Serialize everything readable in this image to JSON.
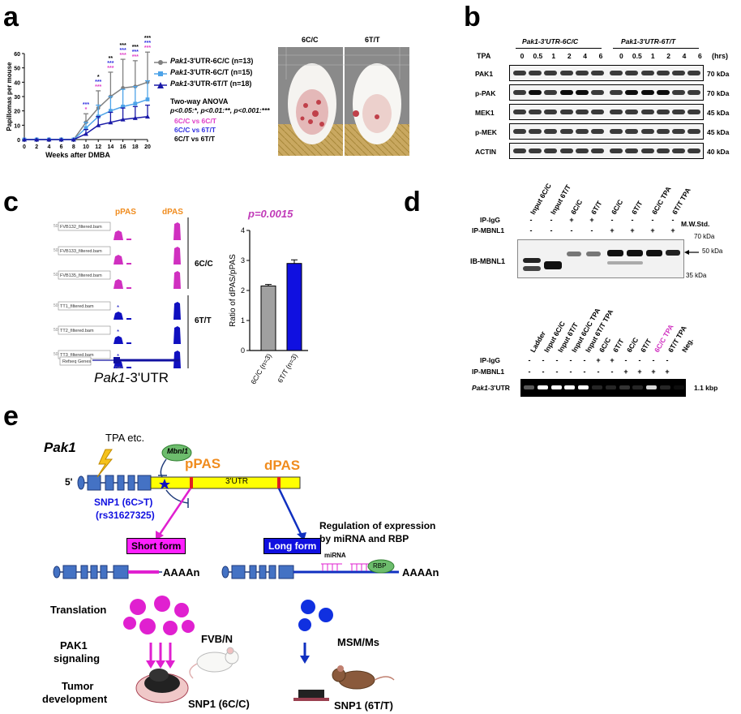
{
  "panel_labels": {
    "a": "a",
    "b": "b",
    "c": "c",
    "d": "d",
    "e": "e"
  },
  "panel_a": {
    "chart_data": {
      "type": "line",
      "ylabel": "Papillomas per mouse",
      "xlabel": "Weeks after DMBA",
      "x": [
        0,
        2,
        4,
        6,
        8,
        10,
        12,
        14,
        16,
        18,
        20
      ],
      "xlim": [
        0,
        20
      ],
      "ylim": [
        0,
        60
      ],
      "yticks": [
        0,
        10,
        20,
        30,
        40,
        50,
        60
      ],
      "series": [
        {
          "name": "Pak1-3'UTR-6C/C (n=13)",
          "genotype": "6C/C",
          "color": "#808080",
          "values": [
            0,
            0,
            0,
            0,
            0,
            12,
            22,
            30,
            36,
            37,
            40
          ],
          "err": [
            0,
            0,
            0,
            0,
            0,
            6,
            12,
            17,
            20,
            18,
            21
          ]
        },
        {
          "name": "Pak1-3'UTR-6C/T (n=15)",
          "genotype": "6C/T",
          "color": "#4da3e8",
          "values": [
            0,
            0,
            0,
            0,
            0,
            8,
            16,
            20,
            23,
            25,
            28
          ],
          "err": [
            0,
            0,
            0,
            0,
            0,
            4,
            8,
            10,
            12,
            12,
            13
          ]
        },
        {
          "name": "Pak1-3'UTR-6T/T (n=18)",
          "genotype": "6T/T",
          "color": "#1a1aa8",
          "values": [
            0,
            0,
            0,
            0,
            0,
            4,
            10,
            12,
            14,
            15,
            16
          ],
          "err": [
            0,
            0,
            0,
            0,
            0,
            3,
            6,
            7,
            8,
            8,
            8
          ]
        }
      ],
      "significance": {
        "x": [
          10,
          12,
          14,
          16,
          18,
          20
        ],
        "black": [
          "",
          "*",
          "**",
          "***",
          "***",
          "***"
        ],
        "blue": [
          "***",
          "***",
          "***",
          "***",
          "***",
          "***"
        ],
        "magenta": [
          "*",
          "***",
          "***",
          "***",
          "***",
          "***"
        ]
      }
    },
    "legend_prefix": "Pak1",
    "legend_suffixes": [
      "-3'UTR-6C/C (n=13)",
      "-3'UTR-6C/T (n=15)",
      "-3'UTR-6T/T (n=18)"
    ],
    "anova_title": "Two-way ANOVA",
    "anova_p": "p<0.05:*, p<0.01:**, p<0.001:***",
    "comparisons": [
      {
        "text": "6C/C vs 6C/T",
        "color": "#e040c8"
      },
      {
        "text": "6C/C vs 6T/T",
        "color": "#3030e0"
      },
      {
        "text": "6C/T vs 6T/T",
        "color": "#000000"
      }
    ],
    "photo_labels": [
      "6C/C",
      "6T/T"
    ]
  },
  "panel_b": {
    "group1": "Pak1-3'UTR-6C/C",
    "group2": "Pak1-3'UTR-6T/T",
    "tpa_label": "TPA",
    "hrs_label": "(hrs)",
    "timepoints": [
      "0",
      "0.5",
      "1",
      "2",
      "4",
      "6",
      "0",
      "0.5",
      "1",
      "2",
      "4",
      "6"
    ],
    "rows": [
      {
        "name": "PAK1",
        "kda": "70 kDa"
      },
      {
        "name": "p-PAK",
        "kda": "70 kDa"
      },
      {
        "name": "MEK1",
        "kda": "45 kDa"
      },
      {
        "name": "p-MEK",
        "kda": "45 kDa"
      },
      {
        "name": "ACTIN",
        "kda": "40 kDa"
      }
    ]
  },
  "panel_c": {
    "ppas": "pPAS",
    "dpas": "dPAS",
    "tracks": [
      "FVB132_filtered.bam",
      "FVB133_filtered.bam",
      "FVB135_filtered.bam",
      "TT1_filtered.bam",
      "TT2_filtered.bam",
      "TT3_filtered.bam"
    ],
    "group1": "6C/C",
    "group2": "6T/T",
    "refseq": "Refseq Genes",
    "gene": "Pak1",
    "region_prefix": "Pak1",
    "region_suffix": "-3'UTR",
    "pvalue": "p=0.0015",
    "chart_data": {
      "type": "bar",
      "categories": [
        "6C/C (n=3)",
        "6T/T (n=3)"
      ],
      "values": [
        2.15,
        2.9
      ],
      "err": [
        0.05,
        0.12
      ],
      "colors": [
        "#a0a0a0",
        "#1010e0"
      ],
      "ylabel": "Ratio of dPAS/pPAS",
      "ylim": [
        0,
        4
      ],
      "yticks": [
        0,
        1,
        2,
        3,
        4
      ]
    }
  },
  "panel_d": {
    "top_lanes": [
      "Input 6C/C",
      "Input 6T/T",
      "6C/C",
      "6T/T",
      "6C/C",
      "6T/T",
      "6C/C TPA",
      "6T/T TPA"
    ],
    "ip_igg": "IP-IgG",
    "ip_mbnl1": "IP-MBNL1",
    "mw_std": "M.W.Std.",
    "top_igg": [
      "-",
      "-",
      "+",
      "+",
      "-",
      "-",
      "-",
      "-"
    ],
    "top_mbnl1": [
      "-",
      "-",
      "-",
      "-",
      "+",
      "+",
      "+",
      "+"
    ],
    "ib_label": "IB-MBNL1",
    "kda_70": "70 kDa",
    "kda_50": "50 kDa",
    "kda_35": "35 kDa",
    "bottom_lanes": [
      "Ladder",
      "Input 6C/C",
      "Input 6T/T",
      "Input 6C/C TPA",
      "Input 6T/T TPA",
      "6C/C",
      "6T/T",
      "6C/C",
      "6T/T",
      "6C/C TPA",
      "6T/T TPA",
      "Neg."
    ],
    "bottom_igg": [
      "-",
      "-",
      "-",
      "-",
      "-",
      "+",
      "+",
      "-",
      "-",
      "-",
      "-",
      ""
    ],
    "bottom_mbnl1": [
      "-",
      "-",
      "-",
      "-",
      "-",
      "-",
      "-",
      "+",
      "+",
      "+",
      "+",
      ""
    ],
    "bottom_row_prefix": "Pak1",
    "bottom_row_suffix": "-3'UTR",
    "bottom_size": "1.1 kbp"
  },
  "panel_e": {
    "gene": "Pak1",
    "tpa": "TPA etc.",
    "mbnl1": "Mbnl1",
    "ppas": "pPAS",
    "dpas": "dPAS",
    "five_prime": "5'",
    "utr": "3'UTR",
    "snp_line1": "SNP1 (6C>T)",
    "snp_line2": "(rs31627325)",
    "short_form": "Short form",
    "long_form": "Long form",
    "regulation_line1": "Regulation of expression",
    "regulation_line2": "by miRNA and RBP",
    "mirna": "miRNA",
    "rbp": "RBP",
    "polya": "AAAAn",
    "translation": "Translation",
    "signaling_line1": "PAK1",
    "signaling_line2": "signaling",
    "tumor_line1": "Tumor",
    "tumor_line2": "development",
    "fvb": "FVB/N",
    "msm": "MSM/Ms",
    "snp_cc": "SNP1 (6C/C)",
    "snp_tt": "SNP1 (6T/T)"
  }
}
